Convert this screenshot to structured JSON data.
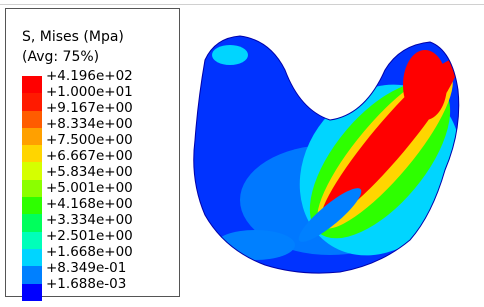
{
  "legend": {
    "title": "S, Mises (Mpa)",
    "subtitle": "(Avg: 75%)",
    "labels": [
      "+4.196e+02",
      "+1.000e+01",
      "+9.167e+00",
      "+8.334e+00",
      "+7.500e+00",
      "+6.667e+00",
      "+5.834e+00",
      "+5.001e+00",
      "+4.168e+00",
      "+3.334e+00",
      "+2.501e+00",
      "+1.668e+00",
      "+8.349e-01",
      "+1.688e-03"
    ],
    "colors": [
      "#ff0000",
      "#ff1a00",
      "#ff5c00",
      "#ffa000",
      "#ffd500",
      "#d5ff00",
      "#8bff00",
      "#2eff00",
      "#00ff5c",
      "#00ffb9",
      "#00d5ff",
      "#0080ff",
      "#0000ff"
    ]
  }
}
